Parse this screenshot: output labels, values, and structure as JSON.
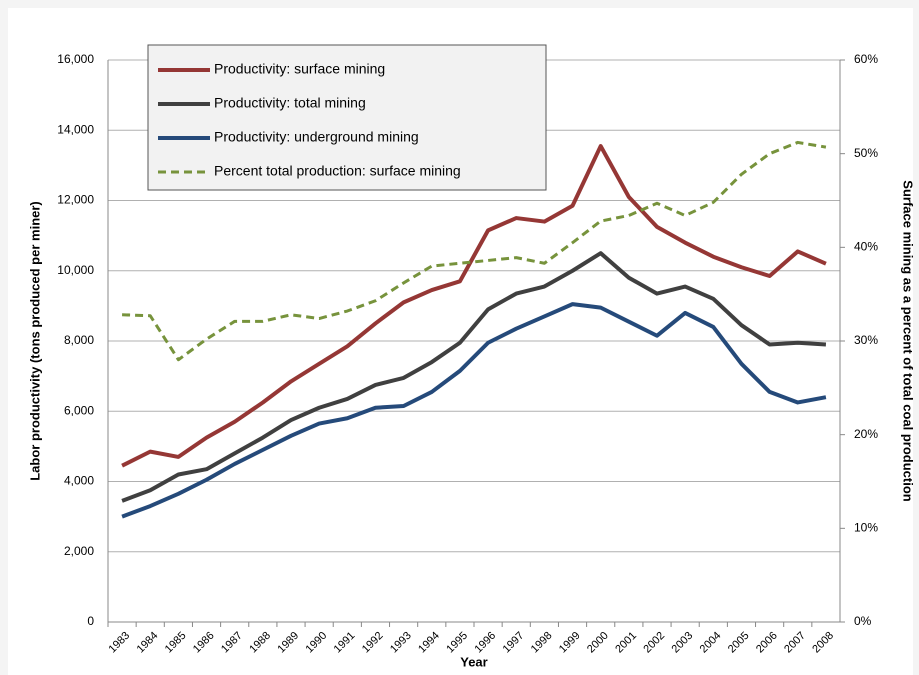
{
  "chart_data": {
    "type": "line",
    "categories": [
      "1983",
      "1984",
      "1985",
      "1986",
      "1987",
      "1988",
      "1989",
      "1990",
      "1991",
      "1992",
      "1993",
      "1994",
      "1995",
      "1996",
      "1997",
      "1998",
      "1999",
      "2000",
      "2001",
      "2002",
      "2003",
      "2004",
      "2005",
      "2006",
      "2007",
      "2008"
    ],
    "x_label": "Year",
    "y_label": "Labor productivity (tons produced per miner)",
    "y2_label": "Surface mining as a percent of total coal production",
    "ylim": [
      0,
      16000
    ],
    "yticks": [
      0,
      {
        "value": 2000,
        "label": "2,000"
      },
      {
        "value": 4000,
        "label": "4,000"
      },
      {
        "value": 6000,
        "label": "6,000"
      },
      {
        "value": 8000,
        "label": "8,000"
      },
      {
        "value": 10000,
        "label": "10,000"
      },
      {
        "value": 12000,
        "label": "12,000"
      },
      {
        "value": 14000,
        "label": "14,000"
      },
      {
        "value": 16000,
        "label": "16,000"
      }
    ],
    "y2lim": [
      0,
      60
    ],
    "y2ticks": [
      {
        "value": 0,
        "label": "0%"
      },
      {
        "value": 10,
        "label": "10%"
      },
      {
        "value": 20,
        "label": "20%"
      },
      {
        "value": 30,
        "label": "30%"
      },
      {
        "value": 40,
        "label": "40%"
      },
      {
        "value": 50,
        "label": "50%"
      },
      {
        "value": 60,
        "label": "60%"
      }
    ],
    "grid": true,
    "legend": "top-left",
    "series": [
      {
        "name": "Productivity: surface mining",
        "color": "#953735",
        "values": [
          4450,
          4850,
          4700,
          5250,
          5700,
          6250,
          6850,
          7350,
          7850,
          8500,
          9100,
          9450,
          9700,
          11150,
          11500,
          11400,
          11850,
          13550,
          12100,
          11250,
          10800,
          10400,
          10100,
          9850,
          10550,
          10200
        ]
      },
      {
        "name": "Productivity: total mining",
        "color": "#404040",
        "values": [
          3450,
          3750,
          4200,
          4350,
          4800,
          5250,
          5750,
          6100,
          6350,
          6750,
          6950,
          7400,
          7950,
          8900,
          9350,
          9550,
          10000,
          10500,
          9800,
          9350,
          9550,
          9200,
          8450,
          7900,
          7950,
          7900
        ]
      },
      {
        "name": "Productivity: underground mining",
        "color": "#254a7a",
        "values": [
          3000,
          3300,
          3650,
          4050,
          4500,
          4900,
          5300,
          5650,
          5800,
          6100,
          6150,
          6550,
          7150,
          7950,
          8350,
          8700,
          9050,
          8950,
          8550,
          8150,
          8800,
          8400,
          7350,
          6550,
          6250,
          6400
        ]
      },
      {
        "name": "Percent total production: surface mining",
        "color": "#77933c",
        "dashed": true,
        "axis": "y2",
        "values": [
          32.8,
          32.7,
          28,
          30.2,
          32.1,
          32.1,
          32.8,
          32.4,
          33.2,
          34.3,
          36.2,
          38,
          38.3,
          38.6,
          38.9,
          38.3,
          40.5,
          42.8,
          43.4,
          44.7,
          43.4,
          44.8,
          47.8,
          50,
          51.2,
          50.7
        ]
      }
    ]
  }
}
